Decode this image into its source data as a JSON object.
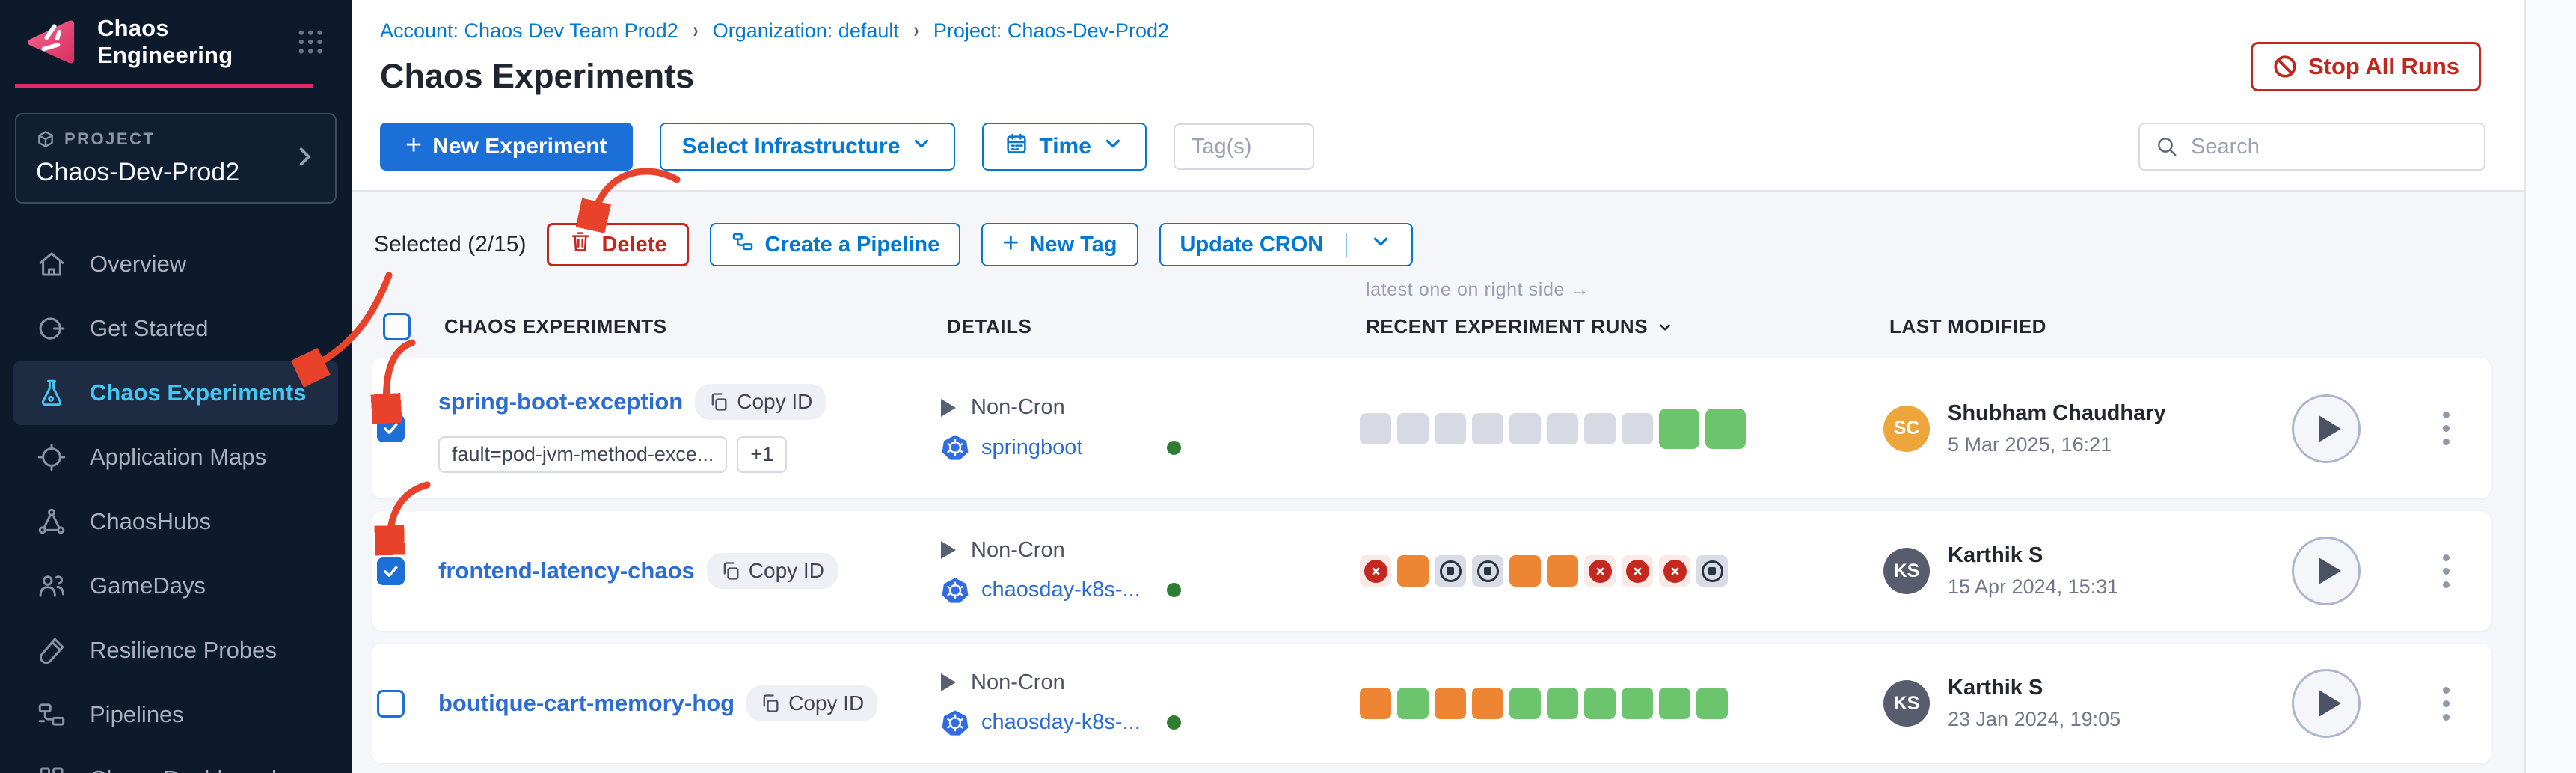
{
  "app": {
    "title": "Chaos Engineering"
  },
  "project": {
    "label": "PROJECT",
    "name": "Chaos-Dev-Prod2"
  },
  "sidebar": {
    "items": [
      {
        "label": "Overview"
      },
      {
        "label": "Get Started"
      },
      {
        "label": "Chaos Experiments",
        "active": true
      },
      {
        "label": "Application Maps"
      },
      {
        "label": "ChaosHubs"
      },
      {
        "label": "GameDays"
      },
      {
        "label": "Resilience Probes"
      },
      {
        "label": "Pipelines"
      },
      {
        "label": "Chaos Dashboards"
      }
    ]
  },
  "breadcrumb": {
    "account": "Account: Chaos Dev Team Prod2",
    "org": "Organization: default",
    "project": "Project: Chaos-Dev-Prod2"
  },
  "page": {
    "title": "Chaos Experiments",
    "stop_all_runs": "Stop All Runs"
  },
  "toolbar": {
    "new_experiment": "New Experiment",
    "select_infrastructure": "Select Infrastructure",
    "time": "Time",
    "tags_placeholder": "Tag(s)",
    "search_placeholder": "Search"
  },
  "bulkbar": {
    "selected": "Selected (2/15)",
    "delete": "Delete",
    "create_pipeline": "Create a Pipeline",
    "new_tag": "New Tag",
    "update_cron": "Update CRON"
  },
  "table": {
    "note": "latest one on right side →",
    "col_experiments": "CHAOS EXPERIMENTS",
    "col_details": "DETAILS",
    "col_runs": "RECENT EXPERIMENT RUNS",
    "col_modified": "LAST MODIFIED"
  },
  "rows": [
    {
      "name": "spring-boot-exception",
      "copy_id": "Copy ID",
      "checked": true,
      "tags": [
        "fault=pod-jvm-method-exce...",
        "+1"
      ],
      "cron": "Non-Cron",
      "infra": "springboot",
      "runs": [
        "gray",
        "gray",
        "gray",
        "gray",
        "gray",
        "gray",
        "gray",
        "gray",
        "green",
        "green"
      ],
      "modified": {
        "initials": "SC",
        "avatar_color": "#eda63c",
        "name": "Shubham Chaudhary",
        "date": "5 Mar 2025, 16:21"
      }
    },
    {
      "name": "frontend-latency-chaos",
      "copy_id": "Copy ID",
      "checked": true,
      "tags": [],
      "cron": "Non-Cron",
      "infra": "chaosday-k8s-...",
      "runs": [
        "failed",
        "orange",
        "stopped",
        "stopped",
        "orange",
        "orange",
        "failed",
        "failed",
        "failed",
        "stopped"
      ],
      "modified": {
        "initials": "KS",
        "avatar_color": "#575c6e",
        "name": "Karthik S",
        "date": "15 Apr 2024, 15:31"
      }
    },
    {
      "name": "boutique-cart-memory-hog",
      "copy_id": "Copy ID",
      "checked": false,
      "tags": [],
      "cron": "Non-Cron",
      "infra": "chaosday-k8s-...",
      "runs": [
        "orange",
        "green",
        "orange",
        "orange",
        "green",
        "green",
        "green",
        "green",
        "green",
        "green"
      ],
      "modified": {
        "initials": "KS",
        "avatar_color": "#575c6e",
        "name": "Karthik S",
        "date": "23 Jan 2024, 19:05"
      }
    }
  ],
  "colors": {
    "accent_blue": "#0278d5",
    "active_nav": "#45c7f4",
    "brand_pink": "#e5286a",
    "danger_red": "#c5261c",
    "run_green": "#6cc46d",
    "run_orange": "#ed8532",
    "run_gray": "#d8dae3",
    "stopped_ink": "#2c3340"
  }
}
